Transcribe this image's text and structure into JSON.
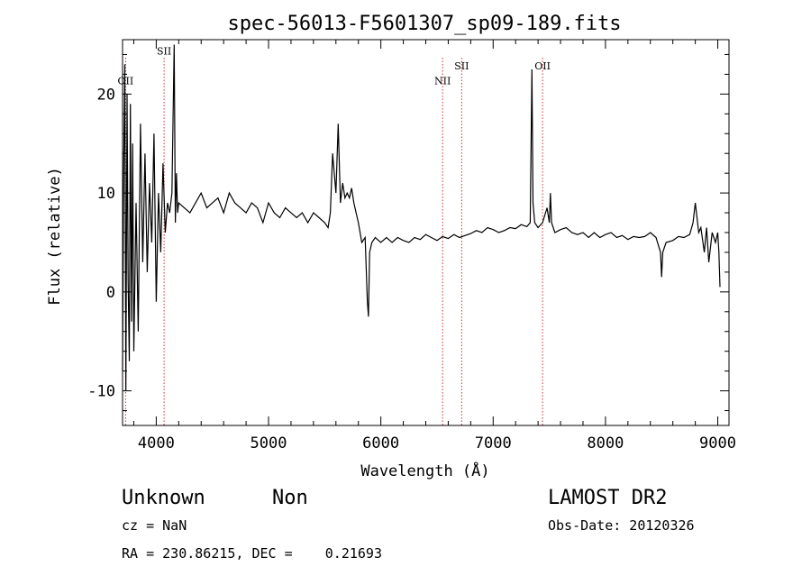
{
  "chart_data": {
    "type": "line",
    "title": "spec-56013-F5601307_sp09-189.fits",
    "xlabel": "Wavelength (Å)",
    "ylabel": "Flux (relative)",
    "xlim": [
      3700,
      9100
    ],
    "ylim": [
      -13.5,
      25.5
    ],
    "xticks": [
      4000,
      5000,
      6000,
      7000,
      8000,
      9000
    ],
    "yticks": [
      -10,
      0,
      10,
      20
    ],
    "grid": false,
    "spectral_lines": [
      {
        "label": "OII",
        "wavelength": 3727,
        "label_y": 21
      },
      {
        "label": "SII",
        "wavelength": 4070,
        "label_y": 24
      },
      {
        "label": "NII",
        "wavelength": 6550,
        "label_y": 21
      },
      {
        "label": "SII",
        "wavelength": 6720,
        "label_y": 22.5
      },
      {
        "label": "OII",
        "wavelength": 7440,
        "label_y": 22.5
      }
    ],
    "series": [
      {
        "x": [
          3700,
          3710,
          3720,
          3730,
          3740,
          3750,
          3760,
          3770,
          3780,
          3790,
          3800,
          3820,
          3840,
          3860,
          3880,
          3900,
          3920,
          3940,
          3960,
          3980,
          4000,
          4020,
          4040,
          4060,
          4080,
          4100,
          4120,
          4140,
          4160,
          4170,
          4180,
          4190,
          4200,
          4250,
          4300,
          4350,
          4400,
          4450,
          4500,
          4550,
          4600,
          4650,
          4700,
          4750,
          4800,
          4850,
          4900,
          4950,
          5000,
          5050,
          5100,
          5150,
          5200,
          5250,
          5300,
          5350,
          5400,
          5450,
          5500,
          5530,
          5550,
          5570,
          5600,
          5620,
          5640,
          5660,
          5680,
          5700,
          5720,
          5740,
          5760,
          5780,
          5800,
          5830,
          5860,
          5880,
          5890,
          5900,
          5920,
          5950,
          6000,
          6050,
          6100,
          6150,
          6200,
          6250,
          6300,
          6350,
          6400,
          6450,
          6500,
          6550,
          6600,
          6650,
          6700,
          6750,
          6800,
          6850,
          6900,
          6950,
          7000,
          7050,
          7100,
          7150,
          7200,
          7250,
          7300,
          7330,
          7345,
          7355,
          7370,
          7400,
          7440,
          7480,
          7500,
          7510,
          7520,
          7550,
          7600,
          7650,
          7700,
          7750,
          7800,
          7850,
          7900,
          7950,
          8000,
          8050,
          8100,
          8150,
          8200,
          8250,
          8300,
          8350,
          8400,
          8450,
          8490,
          8500,
          8510,
          8540,
          8600,
          8650,
          8700,
          8750,
          8780,
          8800,
          8830,
          8850,
          8880,
          8900,
          8920,
          8950,
          8980,
          9000,
          9010,
          9020
        ],
        "y": [
          -8,
          12,
          23,
          -10,
          20,
          1,
          -7,
          19,
          -3,
          15,
          -6,
          9,
          -4,
          17,
          3,
          14,
          2,
          11,
          5,
          16,
          -1,
          10,
          4,
          13,
          6,
          9,
          8,
          10,
          25,
          7,
          12,
          8,
          9,
          8.5,
          8,
          9,
          10,
          8.5,
          9,
          9.5,
          8,
          10,
          9,
          8.5,
          8,
          9,
          8.5,
          7,
          9,
          8,
          7.5,
          8.5,
          8,
          7.5,
          8,
          7,
          8,
          7.5,
          7,
          6.5,
          8,
          14,
          10,
          17,
          9,
          11,
          9.5,
          10,
          9.5,
          10.5,
          9,
          8,
          7,
          5,
          5.5,
          -1,
          -2.5,
          4,
          5,
          5.5,
          5,
          5.5,
          5,
          5.5,
          5.2,
          5,
          5.5,
          5.3,
          5.8,
          5.5,
          5.2,
          5.6,
          5.4,
          5.8,
          5.5,
          5.7,
          5.9,
          6.2,
          6,
          6.5,
          6.3,
          6,
          6.2,
          6.5,
          6.4,
          6.8,
          6.6,
          7,
          22.5,
          9,
          7,
          6.5,
          7,
          8.5,
          7,
          10,
          7,
          6,
          6.3,
          6.5,
          6,
          5.8,
          6,
          5.5,
          6,
          5.5,
          5.8,
          6,
          5.5,
          5.7,
          5.3,
          5.6,
          5.5,
          5.6,
          6,
          5.5,
          4,
          1.5,
          4,
          5,
          5.2,
          5.6,
          5.5,
          5.8,
          7,
          9,
          6,
          6.5,
          4,
          6.5,
          3,
          6,
          5,
          6,
          4,
          0.5
        ]
      }
    ],
    "line_color": "#000000",
    "marker_color": "#cc3333"
  },
  "annotations": {
    "object_class": "Unknown",
    "object_subclass": "Non",
    "survey": "LAMOST DR2",
    "cz": "cz = NaN",
    "obs_date": "Obs-Date: 20120326",
    "coords": "RA = 230.86215, DEC =    0.21693"
  }
}
